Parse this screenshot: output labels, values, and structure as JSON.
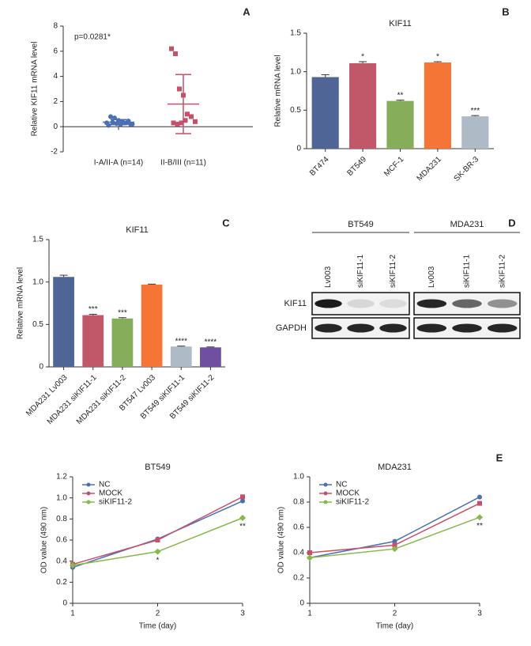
{
  "chart_data": [
    {
      "type": "dot",
      "panel": "A",
      "ylabel": "Relative KIF11 mRNA level",
      "annotation": "p=0.0281*",
      "categories": [
        "I-A/II-A (n=14)",
        "II-B/III (n=11)"
      ],
      "groups": [
        {
          "color": "#4a6fb5",
          "values": [
            0.3,
            0.8,
            0.7,
            0.5,
            0.4,
            0.3,
            0.2,
            0.1,
            0.35,
            0.25,
            0.15,
            0.3,
            0.45,
            0.2
          ],
          "mean": 0.36,
          "sd": 0.2
        },
        {
          "color": "#c6506a",
          "values": [
            6.2,
            5.8,
            3.0,
            2.5,
            1.0,
            0.8,
            0.4,
            0.3,
            0.2,
            0.3,
            0.5
          ],
          "mean": 1.8,
          "sd": 2.35
        }
      ],
      "ylim": [
        -2,
        8
      ],
      "yticks": [
        -2,
        0,
        2,
        4,
        6,
        8
      ]
    },
    {
      "type": "bar",
      "panel": "B",
      "title": "KIF11",
      "ylabel": "Relative mRNA level",
      "categories": [
        "BT474",
        "BT549",
        "MCF-1",
        "MDA231",
        "SK-BR-3"
      ],
      "values": [
        0.93,
        1.11,
        0.62,
        1.12,
        0.42
      ],
      "errors": [
        0.03,
        0.02,
        0.01,
        0.01,
        0.01
      ],
      "colors": [
        "#4f6595",
        "#c0586a",
        "#86ad5a",
        "#f47535",
        "#aebbc6"
      ],
      "annotations": [
        null,
        "*",
        "**",
        "*",
        "***"
      ],
      "ylim": [
        0,
        1.5
      ],
      "yticks": [
        0,
        0.5,
        {
          "value": 1,
          "label": "1.0"
        },
        1.5
      ]
    },
    {
      "type": "bar",
      "panel": "C",
      "title": "KIF11",
      "ylabel": "Relative mRNA level",
      "categories": [
        "MDA231 Lv003",
        "MDA231 siKIF11-1",
        "MDA231 siKIF11-2",
        "BT547 Lv003",
        "BT549 siKIF11-1",
        "BT549 siKIF11-2"
      ],
      "values": [
        1.06,
        0.61,
        0.57,
        0.97,
        0.24,
        0.23
      ],
      "errors": [
        0.02,
        0.01,
        0.01,
        0.005,
        0.005,
        0.005
      ],
      "colors": [
        "#4f6595",
        "#c0586a",
        "#86ad5a",
        "#f47535",
        "#aebbc6",
        "#6e4fa0"
      ],
      "annotations": [
        null,
        "***",
        "***",
        null,
        "****",
        "****"
      ],
      "ylim": [
        0,
        1.5
      ],
      "yticks": [
        0,
        0.5,
        {
          "value": 1,
          "label": "1.0"
        },
        1.5
      ]
    },
    {
      "type": "line",
      "title": "BT549",
      "xlabel": "Time (day)",
      "ylabel": "OD value (490 nm)",
      "x": [
        1,
        2,
        3
      ],
      "xlim": [
        1,
        3
      ],
      "xticks": [
        1,
        2,
        3
      ],
      "ylim": [
        0,
        1.2
      ],
      "yticks": [
        0,
        0.2,
        0.4,
        0.6,
        0.8,
        {
          "value": 1,
          "label": "1.0"
        },
        1.2
      ],
      "series": [
        {
          "name": "NC",
          "color": "#4a6fb5",
          "values": [
            0.34,
            0.61,
            0.97
          ]
        },
        {
          "name": "MOCK",
          "color": "#c6506a",
          "values": [
            0.37,
            0.6,
            1.01
          ]
        },
        {
          "name": "siKIF11-2",
          "color": "#86b84a",
          "values": [
            0.36,
            0.49,
            0.81
          ]
        }
      ],
      "annotations": [
        {
          "x": 2,
          "label": "*"
        },
        {
          "x": 3,
          "label": "**"
        }
      ]
    },
    {
      "type": "line",
      "panel": "E",
      "title": "MDA231",
      "xlabel": "Time (day)",
      "ylabel": "OD value (490 nm)",
      "x": [
        1,
        2,
        3
      ],
      "xlim": [
        1,
        3
      ],
      "xticks": [
        1,
        2,
        3
      ],
      "ylim": [
        0,
        1
      ],
      "yticks": [
        0,
        0.2,
        0.4,
        0.6,
        0.8,
        {
          "value": 1,
          "label": "1.0"
        }
      ],
      "series": [
        {
          "name": "NC",
          "color": "#4a6fb5",
          "values": [
            0.36,
            0.49,
            0.84
          ]
        },
        {
          "name": "MOCK",
          "color": "#c6506a",
          "values": [
            0.4,
            0.46,
            0.79
          ]
        },
        {
          "name": "siKIF11-2",
          "color": "#86b84a",
          "values": [
            0.36,
            0.43,
            0.68
          ]
        }
      ],
      "annotations": [
        {
          "x": 3,
          "label": "**"
        }
      ]
    }
  ],
  "blot": {
    "panel": "D",
    "rows": [
      "KIF11",
      "GAPDH"
    ],
    "groups": [
      {
        "name": "BT549",
        "lanes": [
          "Lv003",
          "siKIF11-1",
          "siKIF11-2"
        ]
      },
      {
        "name": "MDA231",
        "lanes": [
          "Lv003",
          "siKIF11-1",
          "siKIF11-2"
        ]
      }
    ]
  }
}
